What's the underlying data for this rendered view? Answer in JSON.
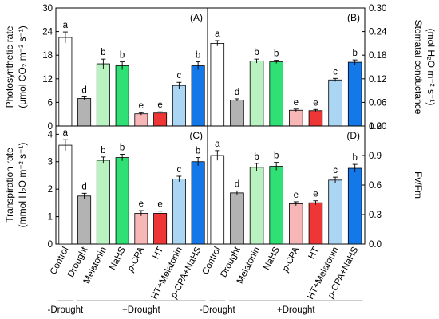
{
  "chart_data": {
    "type": "bar",
    "categories": [
      "Control",
      "Drought",
      "Melatonin",
      "NaHS",
      "p-CPA",
      "HT",
      "HT+Melatonin",
      "p-CPA+NaHS"
    ],
    "category_groups": [
      {
        "label": "-Drought",
        "members": [
          "Control"
        ]
      },
      {
        "label": "+Drought",
        "members": [
          "Drought",
          "Melatonin",
          "NaHS",
          "p-CPA",
          "HT",
          "HT+Melatonin",
          "p-CPA+NaHS"
        ]
      }
    ],
    "bar_colors": [
      "#ffffff",
      "#b3b3b3",
      "#b8f2c0",
      "#2fe074",
      "#f7b7b7",
      "#ee3636",
      "#aad5f3",
      "#1478e8"
    ],
    "panels": [
      {
        "label": "(A)",
        "ylabel_line1": "Photosynthetic rate",
        "ylabel_line2": "(μmol CO₂ m⁻² s⁻¹)",
        "axis_side": "left",
        "ylim": [
          0,
          30
        ],
        "yticks": [
          "0",
          "6",
          "12",
          "18",
          "24",
          "30"
        ],
        "values": [
          22.5,
          7.0,
          15.8,
          15.3,
          3.1,
          3.3,
          10.3,
          15.3
        ],
        "errors": [
          1.4,
          0.4,
          1.2,
          1.0,
          0.3,
          0.3,
          0.8,
          1.0
        ],
        "letters": [
          "a",
          "d",
          "b",
          "b",
          "e",
          "e",
          "c",
          "b"
        ]
      },
      {
        "label": "(B)",
        "ylabel_line1": "Stomatal conductance",
        "ylabel_line2": "(mol H₂O m⁻² s⁻¹)",
        "axis_side": "right",
        "ylim": [
          0,
          0.3
        ],
        "yticks": [
          "0.00",
          "0.06",
          "0.12",
          "0.18",
          "0.24",
          "0.30"
        ],
        "values": [
          0.21,
          0.066,
          0.165,
          0.163,
          0.04,
          0.039,
          0.117,
          0.162
        ],
        "errors": [
          0.007,
          0.003,
          0.005,
          0.004,
          0.003,
          0.003,
          0.004,
          0.006
        ],
        "letters": [
          "a",
          "d",
          "b",
          "b",
          "e",
          "e",
          "c",
          "b"
        ]
      },
      {
        "label": "(C)",
        "ylabel_line1": "Transpiration rate",
        "ylabel_line2": "(mmol H₂O m⁻² s⁻¹)",
        "axis_side": "left",
        "ylim": [
          0,
          4.3
        ],
        "yticks": [
          "0",
          "1",
          "2",
          "3",
          "4"
        ],
        "values": [
          3.6,
          1.75,
          3.05,
          3.15,
          1.12,
          1.12,
          2.37,
          3.0
        ],
        "errors": [
          0.2,
          0.1,
          0.12,
          0.12,
          0.1,
          0.08,
          0.1,
          0.15
        ],
        "letters": [
          "a",
          "d",
          "b",
          "b",
          "e",
          "e",
          "c",
          "b"
        ]
      },
      {
        "label": "(D)",
        "ylabel_line1": "Fv/Fm",
        "ylabel_line2": "",
        "axis_side": "right",
        "ylim": [
          0,
          1.2
        ],
        "yticks": [
          "0.0",
          "0.3",
          "0.6",
          "0.9",
          "1.2"
        ],
        "values": [
          0.9,
          0.52,
          0.78,
          0.79,
          0.41,
          0.42,
          0.65,
          0.77
        ],
        "errors": [
          0.05,
          0.02,
          0.04,
          0.04,
          0.02,
          0.02,
          0.03,
          0.04
        ],
        "letters": [
          "a",
          "d",
          "b",
          "b",
          "e",
          "e",
          "c",
          "b"
        ]
      }
    ]
  }
}
